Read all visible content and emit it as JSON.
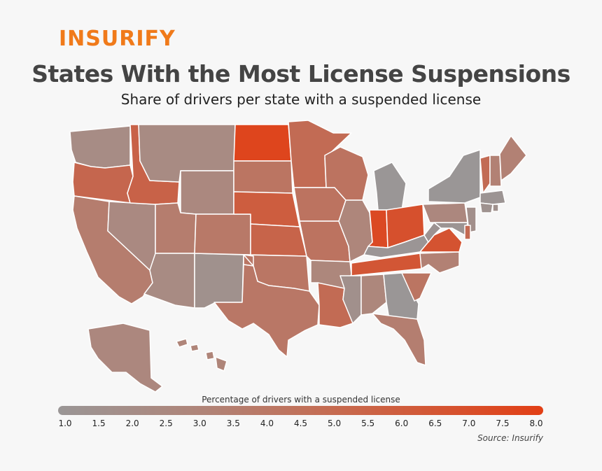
{
  "brand": {
    "logo_text": "INSURIFY",
    "accent_color": "#f07a1a"
  },
  "title": "States With the Most License Suspensions",
  "subtitle": "Share of drivers per state with a suspended license",
  "legend": {
    "title": "Percentage of drivers with a suspended license",
    "ticks": [
      "1.0",
      "1.5",
      "2.0",
      "2.5",
      "3.0",
      "3.5",
      "4.0",
      "4.5",
      "5.0",
      "5.5",
      "6.0",
      "6.5",
      "7.0",
      "7.5",
      "8.0"
    ],
    "min": 1.0,
    "max": 8.0,
    "color_low": "#9a9696",
    "color_high": "#e23f15"
  },
  "source": "Source: Insurify",
  "chart_data": {
    "type": "choropleth",
    "title": "States With the Most License Suspensions",
    "subtitle": "Share of drivers per state with a suspended license",
    "legend_title": "Percentage of drivers with a suspended license",
    "scale": [
      1.0,
      8.0
    ],
    "states": {
      "WA": 2.2,
      "OR": 5.2,
      "CA": 3.6,
      "NV": 2.5,
      "ID": 5.5,
      "MT": 2.3,
      "WY": 2.6,
      "UT": 3.6,
      "AZ": 2.3,
      "NM": 1.6,
      "CO": 3.9,
      "ND": 7.6,
      "SD": 4.2,
      "NE": 5.9,
      "KS": 5.4,
      "OK": 4.1,
      "TX": 4.0,
      "MN": 4.9,
      "IA": 4.3,
      "MO": 4.3,
      "AR": 2.8,
      "LA": 4.9,
      "WI": 4.3,
      "IL": 2.9,
      "MI": 1.0,
      "IN": 7.3,
      "OH": 6.8,
      "KY": 1.1,
      "TN": 6.4,
      "MS": 1.7,
      "AL": 2.8,
      "GA": 1.0,
      "FL": 3.5,
      "SC": 4.2,
      "NC": 3.3,
      "VA": 6.6,
      "WV": 1.3,
      "PA": 2.7,
      "NY": 1.0,
      "VT": 4.9,
      "NH": 3.3,
      "ME": 3.3,
      "MA": 1.2,
      "CT": 1.5,
      "NJ": 1.8,
      "MD": 1.2,
      "DE": 5.0,
      "RI": 1.6,
      "AK": 2.7,
      "HI": 3.0
    }
  }
}
